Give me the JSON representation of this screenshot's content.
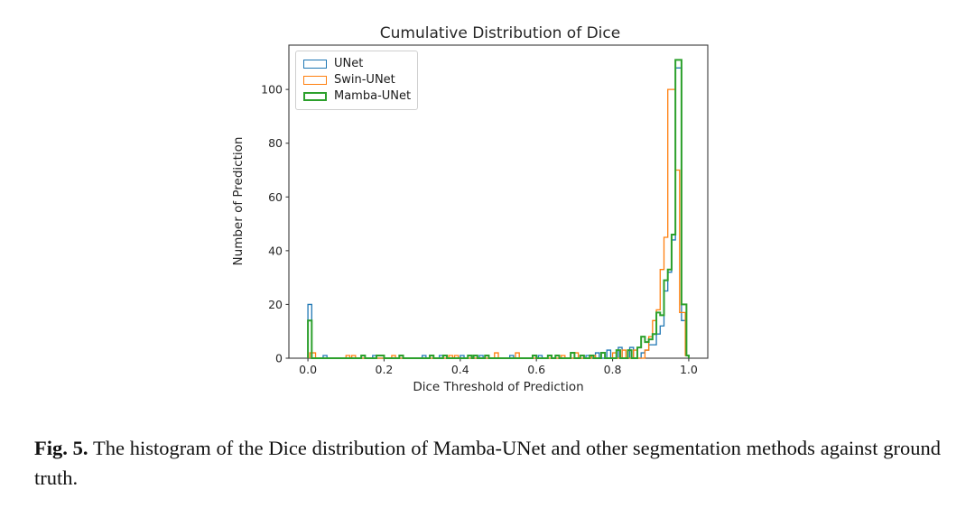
{
  "figure": {
    "title": "Cumulative Distribution of Dice",
    "xlabel": "Dice Threshold of Prediction",
    "ylabel": "Number of Prediction"
  },
  "legend": {
    "position": "upper left",
    "items": [
      {
        "label": "UNet",
        "color": "#1f77b4"
      },
      {
        "label": "Swin-UNet",
        "color": "#ff7f0e"
      },
      {
        "label": "Mamba-UNet",
        "color": "#2ca02c"
      }
    ]
  },
  "caption": {
    "tag": "Fig. 5.",
    "text": " The histogram of the Dice distribution of Mamba-UNet and other segmentation methods against ground truth."
  },
  "chart_data": {
    "type": "histogram-step",
    "title": "Cumulative Distribution of Dice",
    "xlabel": "Dice Threshold of Prediction",
    "ylabel": "Number of Prediction",
    "xlim": [
      -0.05,
      1.05
    ],
    "ylim": [
      0,
      116.5
    ],
    "xticks": [
      0.0,
      0.2,
      0.4,
      0.6,
      0.8,
      1.0
    ],
    "yticks": [
      0,
      20,
      40,
      60,
      80,
      100
    ],
    "grid": false,
    "legend_position": "upper left",
    "bin_format": "[bin_start, bin_end, count]",
    "series": [
      {
        "name": "UNet",
        "color": "#1f77b4",
        "linewidth": 1.3,
        "bins": [
          [
            0.0,
            0.01,
            20
          ],
          [
            0.04,
            0.05,
            1
          ],
          [
            0.17,
            0.18,
            1
          ],
          [
            0.3,
            0.31,
            1
          ],
          [
            0.345,
            0.355,
            1
          ],
          [
            0.4,
            0.41,
            1
          ],
          [
            0.45,
            0.46,
            1
          ],
          [
            0.53,
            0.54,
            1
          ],
          [
            0.605,
            0.615,
            1
          ],
          [
            0.73,
            0.74,
            1
          ],
          [
            0.755,
            0.765,
            2
          ],
          [
            0.785,
            0.795,
            3
          ],
          [
            0.815,
            0.825,
            4
          ],
          [
            0.845,
            0.855,
            4
          ],
          [
            0.875,
            0.885,
            2
          ],
          [
            0.885,
            0.895,
            3
          ],
          [
            0.895,
            0.905,
            5
          ],
          [
            0.905,
            0.915,
            5
          ],
          [
            0.915,
            0.925,
            9
          ],
          [
            0.925,
            0.935,
            12
          ],
          [
            0.935,
            0.945,
            25
          ],
          [
            0.945,
            0.955,
            32
          ],
          [
            0.955,
            0.965,
            44
          ],
          [
            0.965,
            0.981,
            108
          ],
          [
            0.981,
            0.994,
            14
          ],
          [
            0.994,
            1.0,
            1
          ]
        ]
      },
      {
        "name": "Swin-UNet",
        "color": "#ff7f0e",
        "linewidth": 1.3,
        "bins": [
          [
            0.005,
            0.02,
            2
          ],
          [
            0.1,
            0.11,
            1
          ],
          [
            0.115,
            0.125,
            1
          ],
          [
            0.22,
            0.23,
            1
          ],
          [
            0.37,
            0.38,
            1
          ],
          [
            0.385,
            0.395,
            1
          ],
          [
            0.49,
            0.5,
            2
          ],
          [
            0.545,
            0.555,
            2
          ],
          [
            0.665,
            0.675,
            1
          ],
          [
            0.7,
            0.71,
            2
          ],
          [
            0.745,
            0.755,
            1
          ],
          [
            0.77,
            0.78,
            2
          ],
          [
            0.8,
            0.81,
            2
          ],
          [
            0.825,
            0.835,
            3
          ],
          [
            0.855,
            0.865,
            3
          ],
          [
            0.885,
            0.895,
            3
          ],
          [
            0.895,
            0.905,
            8
          ],
          [
            0.905,
            0.915,
            14
          ],
          [
            0.915,
            0.925,
            18
          ],
          [
            0.925,
            0.935,
            33
          ],
          [
            0.935,
            0.945,
            45
          ],
          [
            0.945,
            0.965,
            100
          ],
          [
            0.965,
            0.976,
            70
          ],
          [
            0.976,
            0.991,
            17
          ],
          [
            0.991,
            1.0,
            1
          ]
        ]
      },
      {
        "name": "Mamba-UNet",
        "color": "#2ca02c",
        "linewidth": 2.0,
        "bins": [
          [
            0.0,
            0.01,
            14
          ],
          [
            0.14,
            0.15,
            1
          ],
          [
            0.18,
            0.2,
            1
          ],
          [
            0.24,
            0.25,
            1
          ],
          [
            0.32,
            0.33,
            1
          ],
          [
            0.355,
            0.365,
            1
          ],
          [
            0.42,
            0.43,
            1
          ],
          [
            0.435,
            0.445,
            1
          ],
          [
            0.465,
            0.475,
            1
          ],
          [
            0.59,
            0.6,
            1
          ],
          [
            0.63,
            0.64,
            1
          ],
          [
            0.65,
            0.66,
            1
          ],
          [
            0.69,
            0.7,
            2
          ],
          [
            0.715,
            0.725,
            1
          ],
          [
            0.74,
            0.75,
            1
          ],
          [
            0.77,
            0.78,
            2
          ],
          [
            0.81,
            0.82,
            3
          ],
          [
            0.84,
            0.85,
            3
          ],
          [
            0.865,
            0.875,
            4
          ],
          [
            0.875,
            0.885,
            8
          ],
          [
            0.885,
            0.895,
            6
          ],
          [
            0.895,
            0.905,
            7
          ],
          [
            0.905,
            0.915,
            9
          ],
          [
            0.915,
            0.925,
            17
          ],
          [
            0.925,
            0.935,
            16
          ],
          [
            0.935,
            0.945,
            29
          ],
          [
            0.945,
            0.955,
            33
          ],
          [
            0.955,
            0.965,
            46
          ],
          [
            0.965,
            0.981,
            111
          ],
          [
            0.981,
            0.994,
            20
          ],
          [
            0.994,
            1.0,
            1
          ]
        ]
      }
    ]
  }
}
